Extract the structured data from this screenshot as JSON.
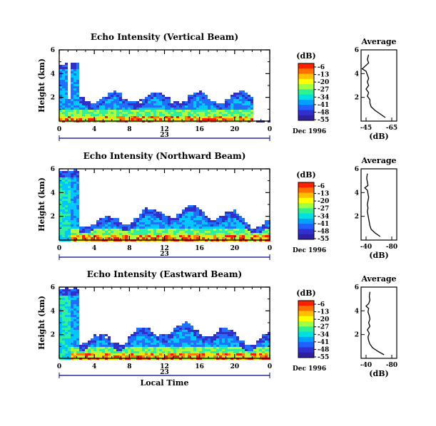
{
  "chart_data": [
    {
      "type": "heatmap",
      "title": "Echo Intensity (Vertical Beam)",
      "ylabel": "Height (km)",
      "xlim": [
        0,
        24
      ],
      "ylim": [
        0,
        6
      ],
      "xticks": [
        "0",
        "4",
        "8",
        "12",
        "16",
        "20",
        "0"
      ],
      "yticks": [
        "2",
        "4",
        "6"
      ],
      "date_marker": "23",
      "date_label": "Dec 1996",
      "colorbar": {
        "unit": "(dB)",
        "labels": [
          "-6",
          "-13",
          "-20",
          "-27",
          "-34",
          "-41",
          "-48",
          "-55"
        ]
      },
      "average": {
        "title": "Average",
        "xlabel": "(dB)",
        "xticks": [
          "-45",
          "-65"
        ],
        "height": [
          0.3,
          0.6,
          0.9,
          1.2,
          1.5,
          1.8,
          2.1,
          2.4,
          2.7,
          3.0,
          3.3,
          3.6,
          3.9,
          4.2,
          4.4,
          4.6,
          4.9,
          5.2,
          5.6
        ],
        "db": [
          -60,
          -56,
          -52,
          -49,
          -48,
          -48,
          -46,
          -47,
          -45,
          -47,
          -46,
          -47,
          -46,
          -45,
          -42,
          -44,
          -47,
          -46,
          -47
        ]
      }
    },
    {
      "type": "heatmap",
      "title": "Echo Intensity (Northward Beam)",
      "ylabel": "Height (km)",
      "xlim": [
        0,
        24
      ],
      "ylim": [
        0,
        6
      ],
      "xticks": [
        "0",
        "4",
        "8",
        "12",
        "16",
        "20",
        "0"
      ],
      "yticks": [
        "2",
        "4",
        "6"
      ],
      "date_marker": "23",
      "date_label": "Dec 1996",
      "colorbar": {
        "unit": "(dB)",
        "labels": [
          "-6",
          "-13",
          "-20",
          "-27",
          "-34",
          "-41",
          "-48",
          "-55"
        ]
      },
      "average": {
        "title": "Average",
        "xlabel": "(dB)",
        "xticks": [
          "-40",
          "-80"
        ],
        "height": [
          0.3,
          0.6,
          0.9,
          1.2,
          1.5,
          1.8,
          2.1,
          2.4,
          2.7,
          3.0,
          3.3,
          3.6,
          3.9,
          4.2,
          4.4,
          4.6,
          4.9,
          5.2,
          5.6
        ],
        "db": [
          -62,
          -54,
          -48,
          -46,
          -45,
          -44,
          -43,
          -42,
          -43,
          -42,
          -43,
          -44,
          -43,
          -42,
          -38,
          -43,
          -42,
          -41,
          -42
        ]
      }
    },
    {
      "type": "heatmap",
      "title": "Echo Intensity (Eastward Beam)",
      "ylabel": "Height (km)",
      "xlim": [
        0,
        24
      ],
      "ylim": [
        0,
        6
      ],
      "xticks": [
        "0",
        "4",
        "8",
        "12",
        "16",
        "20",
        "0"
      ],
      "yticks": [
        "2",
        "4",
        "6"
      ],
      "date_marker": "23",
      "date_label": "Dec 1996",
      "xlabel": "Local Time",
      "colorbar": {
        "unit": "(dB)",
        "labels": [
          "-6",
          "-13",
          "-20",
          "-27",
          "-34",
          "-41",
          "-48",
          "-55"
        ]
      },
      "average": {
        "title": "Average",
        "xlabel": "(dB)",
        "xticks": [
          "-40",
          "-80"
        ],
        "height": [
          0.3,
          0.6,
          0.9,
          1.2,
          1.5,
          1.8,
          2.1,
          2.4,
          2.7,
          3.0,
          3.3,
          3.6,
          3.9,
          4.2,
          4.4,
          4.6,
          4.9,
          5.2,
          5.6
        ],
        "db": [
          -68,
          -58,
          -50,
          -46,
          -44,
          -43,
          -45,
          -42,
          -46,
          -44,
          -46,
          -45,
          -43,
          -44,
          -40,
          -44,
          -46,
          -45,
          -46
        ]
      }
    }
  ],
  "colors": {
    "scale": [
      "#ff1a00",
      "#ff8000",
      "#ffe000",
      "#a8ff40",
      "#30f0a0",
      "#00c8ff",
      "#2070ff",
      "#3030c8"
    ],
    "axis": "#000000",
    "date_axis": "#00008b"
  }
}
